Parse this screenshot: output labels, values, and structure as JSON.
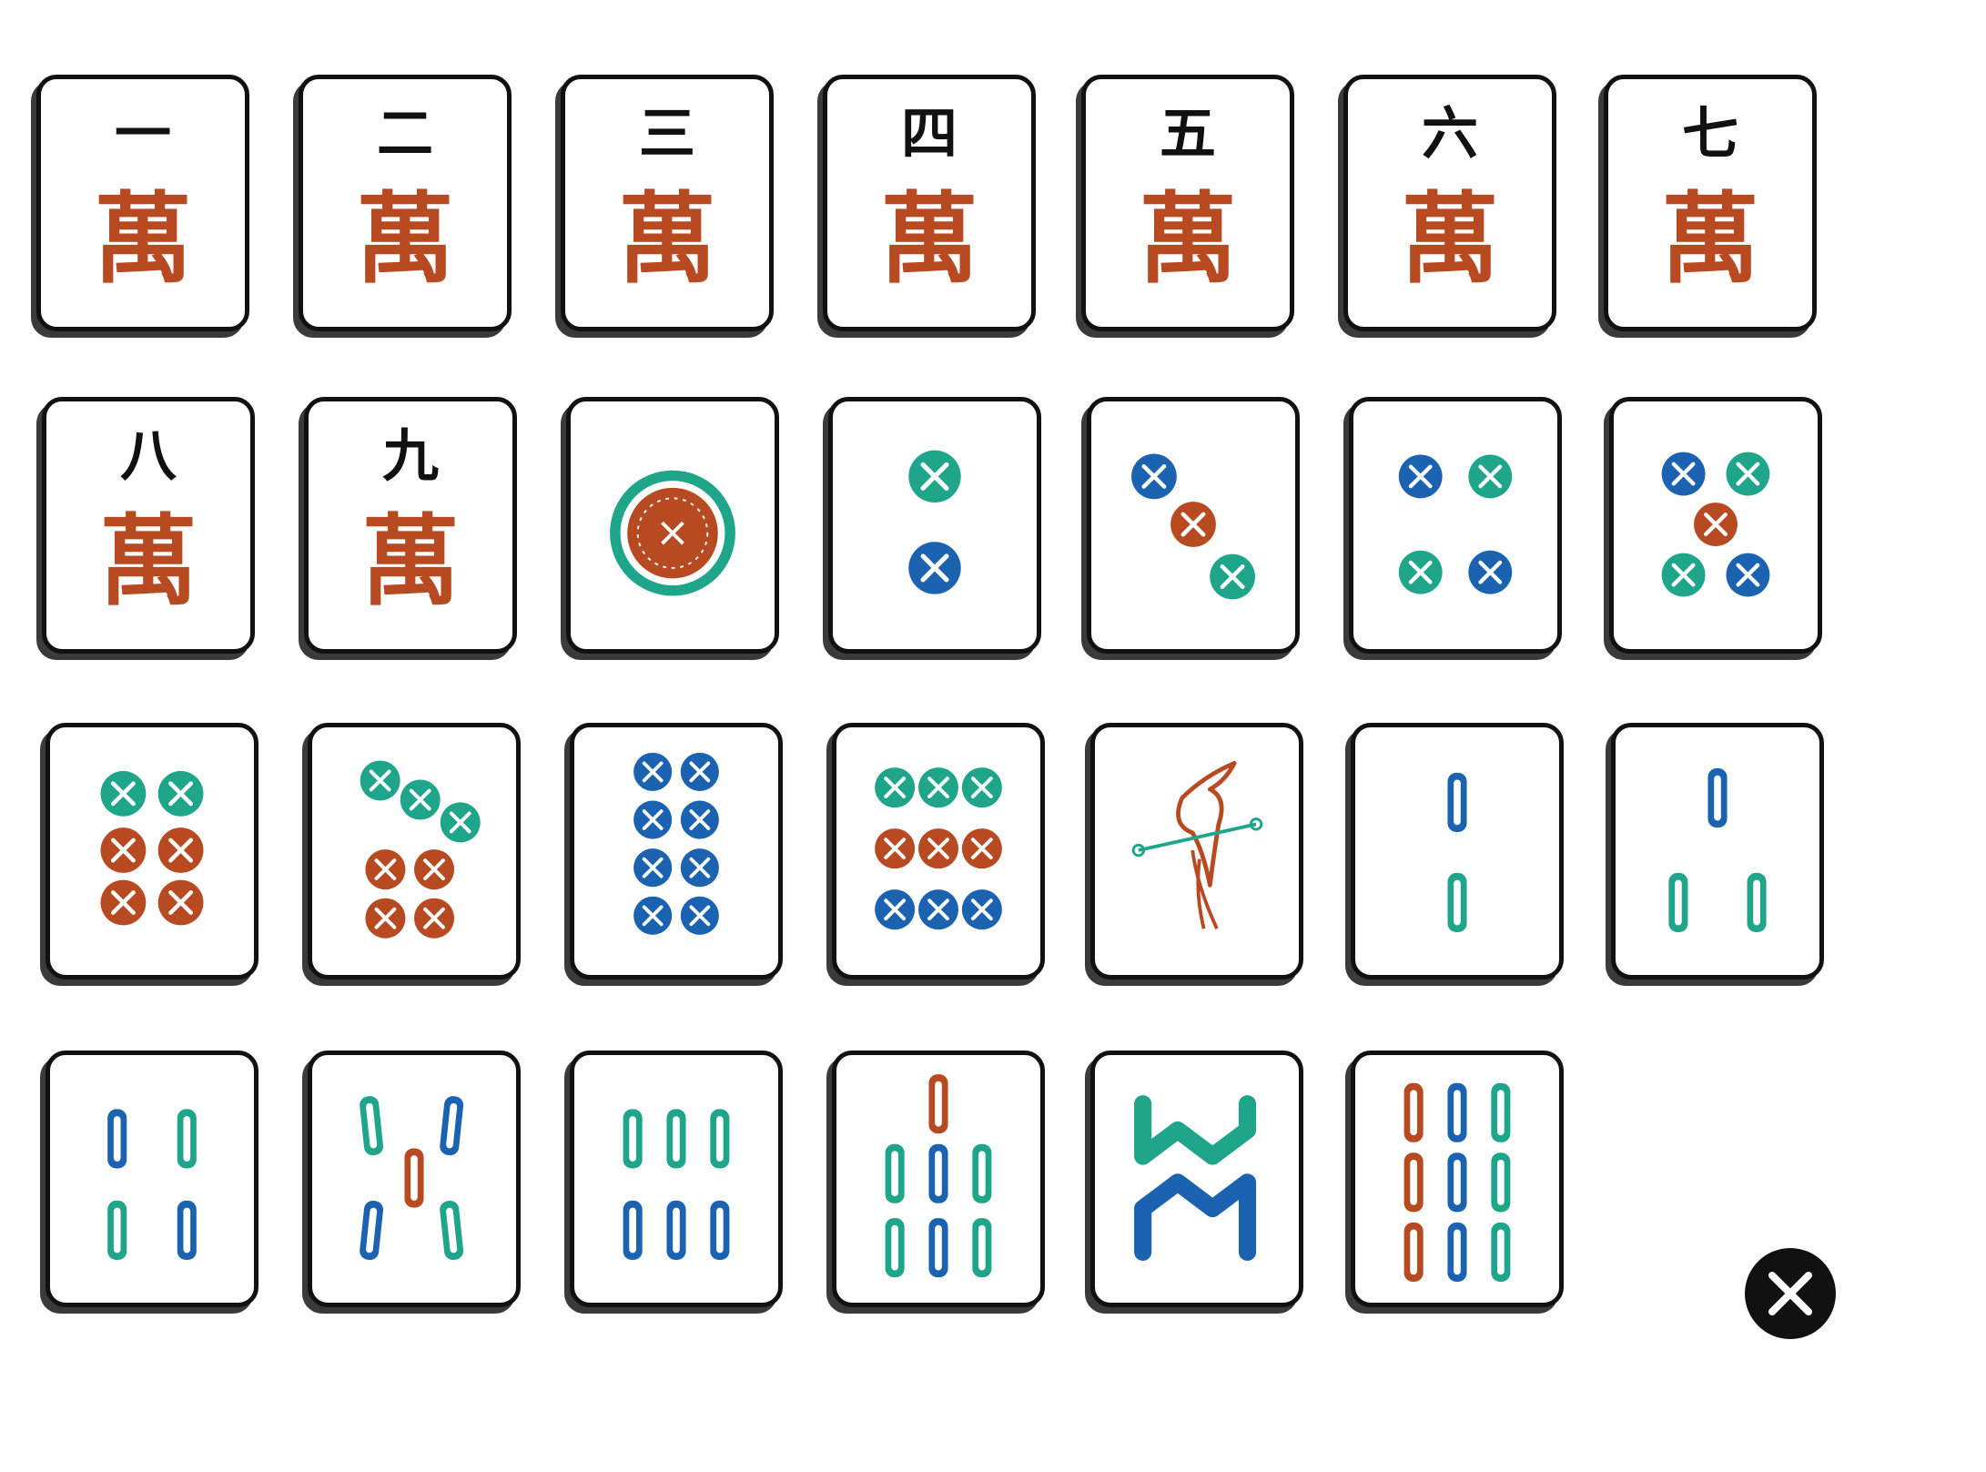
{
  "colors": {
    "red": "#b84a22",
    "green": "#1fa68a",
    "blue": "#1b63b0",
    "ink": "#111111"
  },
  "characters": {
    "wan_char": "萬",
    "tiles": [
      {
        "numeral": "一",
        "suit": "萬"
      },
      {
        "numeral": "二",
        "suit": "萬"
      },
      {
        "numeral": "三",
        "suit": "萬"
      },
      {
        "numeral": "四",
        "suit": "萬"
      },
      {
        "numeral": "五",
        "suit": "萬"
      },
      {
        "numeral": "六",
        "suit": "萬"
      },
      {
        "numeral": "七",
        "suit": "萬"
      },
      {
        "numeral": "八",
        "suit": "萬"
      },
      {
        "numeral": "九",
        "suit": "萬"
      }
    ]
  },
  "circles": [
    {
      "count": 1,
      "colors": [
        "red"
      ]
    },
    {
      "count": 2,
      "colors": [
        "green",
        "blue"
      ]
    },
    {
      "count": 3,
      "colors": [
        "blue",
        "red",
        "green"
      ]
    },
    {
      "count": 4,
      "colors": [
        "blue",
        "green",
        "green",
        "blue"
      ]
    },
    {
      "count": 5,
      "colors": [
        "blue",
        "green",
        "red",
        "green",
        "blue"
      ]
    },
    {
      "count": 6,
      "colors": [
        "green",
        "green",
        "red",
        "red",
        "red",
        "red"
      ]
    },
    {
      "count": 7,
      "colors": [
        "green",
        "green",
        "green",
        "red",
        "red",
        "red",
        "red"
      ]
    },
    {
      "count": 8,
      "colors": [
        "blue",
        "blue",
        "blue",
        "blue",
        "blue",
        "blue",
        "blue",
        "blue"
      ]
    },
    {
      "count": 9,
      "colors": [
        "green",
        "green",
        "green",
        "red",
        "red",
        "red",
        "blue",
        "blue",
        "blue"
      ]
    }
  ],
  "bamboos": [
    {
      "count": 1,
      "symbol": "bird-icon",
      "colors": [
        "red",
        "green"
      ]
    },
    {
      "count": 2,
      "colors": [
        "blue",
        "green"
      ]
    },
    {
      "count": 3,
      "colors": [
        "blue",
        "green",
        "green"
      ]
    },
    {
      "count": 4,
      "colors": [
        "blue",
        "green",
        "green",
        "blue"
      ]
    },
    {
      "count": 5,
      "colors": [
        "green",
        "blue",
        "red",
        "blue",
        "green"
      ]
    },
    {
      "count": 6,
      "colors": [
        "green",
        "green",
        "green",
        "blue",
        "blue",
        "blue"
      ]
    },
    {
      "count": 7,
      "colors": [
        "red",
        "green",
        "blue",
        "green",
        "green",
        "blue",
        "green"
      ]
    },
    {
      "count": 8,
      "colors": [
        "green",
        "green",
        "green",
        "blue",
        "blue",
        "blue",
        "green",
        "blue"
      ]
    },
    {
      "count": 9,
      "colors": [
        "red",
        "blue",
        "green",
        "red",
        "blue",
        "green",
        "red",
        "blue",
        "green"
      ]
    }
  ],
  "spare_piece": {
    "icon": "black-circle-dot-icon",
    "color": "#111111"
  }
}
